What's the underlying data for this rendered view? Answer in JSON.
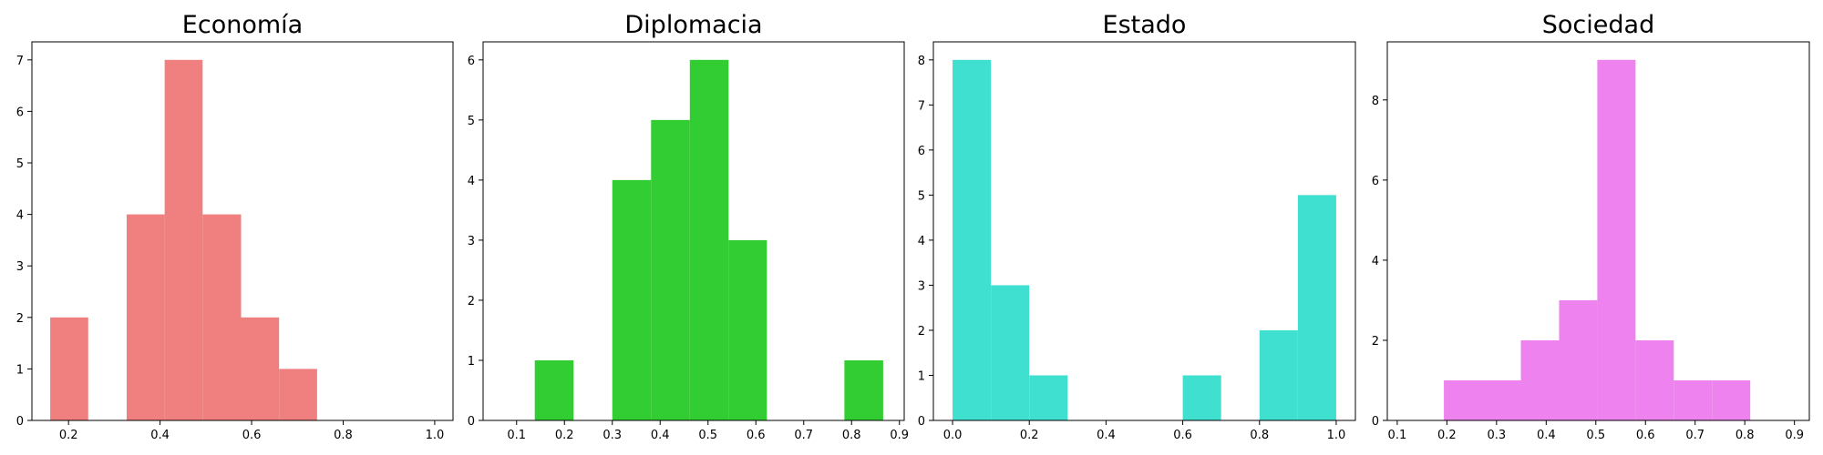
{
  "chart_data": [
    {
      "type": "histogram",
      "title": "Economía",
      "color": "#f08080",
      "xlim": [
        0.12,
        1.04
      ],
      "ylim": [
        0,
        7.35
      ],
      "xticks": [
        0.2,
        0.4,
        0.6,
        0.8,
        1.0
      ],
      "xtick_labels": [
        "0.2",
        "0.4",
        "0.6",
        "0.8",
        "1.0"
      ],
      "yticks": [
        0,
        1,
        2,
        3,
        4,
        5,
        6,
        7
      ],
      "ytick_labels": [
        "0",
        "1",
        "2",
        "3",
        "4",
        "5",
        "6",
        "7"
      ],
      "bins": [
        {
          "start": 0.16,
          "end": 0.243,
          "count": 2
        },
        {
          "start": 0.327,
          "end": 0.41,
          "count": 4
        },
        {
          "start": 0.41,
          "end": 0.493,
          "count": 7
        },
        {
          "start": 0.493,
          "end": 0.577,
          "count": 4
        },
        {
          "start": 0.577,
          "end": 0.66,
          "count": 2
        },
        {
          "start": 0.66,
          "end": 0.743,
          "count": 1
        }
      ]
    },
    {
      "type": "histogram",
      "title": "Diplomacia",
      "color": "#32cd32",
      "xlim": [
        0.03,
        0.91
      ],
      "ylim": [
        0,
        6.3
      ],
      "xticks": [
        0.1,
        0.2,
        0.3,
        0.4,
        0.5,
        0.6,
        0.7,
        0.8,
        0.9
      ],
      "xtick_labels": [
        "0.1",
        "0.2",
        "0.3",
        "0.4",
        "0.5",
        "0.6",
        "0.7",
        "0.8",
        "0.9"
      ],
      "yticks": [
        0,
        1,
        2,
        3,
        4,
        5,
        6
      ],
      "ytick_labels": [
        "0",
        "1",
        "2",
        "3",
        "4",
        "5",
        "6"
      ],
      "bins": [
        {
          "start": 0.138,
          "end": 0.219,
          "count": 1
        },
        {
          "start": 0.3,
          "end": 0.381,
          "count": 4
        },
        {
          "start": 0.381,
          "end": 0.462,
          "count": 5
        },
        {
          "start": 0.462,
          "end": 0.543,
          "count": 6
        },
        {
          "start": 0.543,
          "end": 0.623,
          "count": 3
        },
        {
          "start": 0.785,
          "end": 0.866,
          "count": 1
        }
      ]
    },
    {
      "type": "histogram",
      "title": "Estado",
      "color": "#40e0d0",
      "xlim": [
        -0.05,
        1.05
      ],
      "ylim": [
        0,
        8.4
      ],
      "xticks": [
        0.0,
        0.2,
        0.4,
        0.6,
        0.8,
        1.0
      ],
      "xtick_labels": [
        "0.0",
        "0.2",
        "0.4",
        "0.6",
        "0.8",
        "1.0"
      ],
      "yticks": [
        0,
        1,
        2,
        3,
        4,
        5,
        6,
        7,
        8
      ],
      "ytick_labels": [
        "0",
        "1",
        "2",
        "3",
        "4",
        "5",
        "6",
        "7",
        "8"
      ],
      "bins": [
        {
          "start": 0.0,
          "end": 0.1,
          "count": 8
        },
        {
          "start": 0.1,
          "end": 0.2,
          "count": 3
        },
        {
          "start": 0.2,
          "end": 0.3,
          "count": 1
        },
        {
          "start": 0.6,
          "end": 0.7,
          "count": 1
        },
        {
          "start": 0.8,
          "end": 0.9,
          "count": 2
        },
        {
          "start": 0.9,
          "end": 1.0,
          "count": 5
        }
      ]
    },
    {
      "type": "histogram",
      "title": "Sociedad",
      "color": "#ee82ee",
      "xlim": [
        0.08,
        0.93
      ],
      "ylim": [
        0,
        9.45
      ],
      "xticks": [
        0.1,
        0.2,
        0.3,
        0.4,
        0.5,
        0.6,
        0.7,
        0.8,
        0.9
      ],
      "xtick_labels": [
        "0.1",
        "0.2",
        "0.3",
        "0.4",
        "0.5",
        "0.6",
        "0.7",
        "0.8",
        "0.9"
      ],
      "yticks": [
        0,
        2,
        4,
        6,
        8
      ],
      "ytick_labels": [
        "0",
        "2",
        "4",
        "6",
        "8"
      ],
      "bins": [
        {
          "start": 0.194,
          "end": 0.271,
          "count": 1
        },
        {
          "start": 0.271,
          "end": 0.349,
          "count": 1
        },
        {
          "start": 0.349,
          "end": 0.426,
          "count": 2
        },
        {
          "start": 0.426,
          "end": 0.503,
          "count": 3
        },
        {
          "start": 0.503,
          "end": 0.58,
          "count": 9
        },
        {
          "start": 0.58,
          "end": 0.657,
          "count": 2
        },
        {
          "start": 0.657,
          "end": 0.734,
          "count": 1
        },
        {
          "start": 0.734,
          "end": 0.811,
          "count": 1
        }
      ]
    }
  ]
}
